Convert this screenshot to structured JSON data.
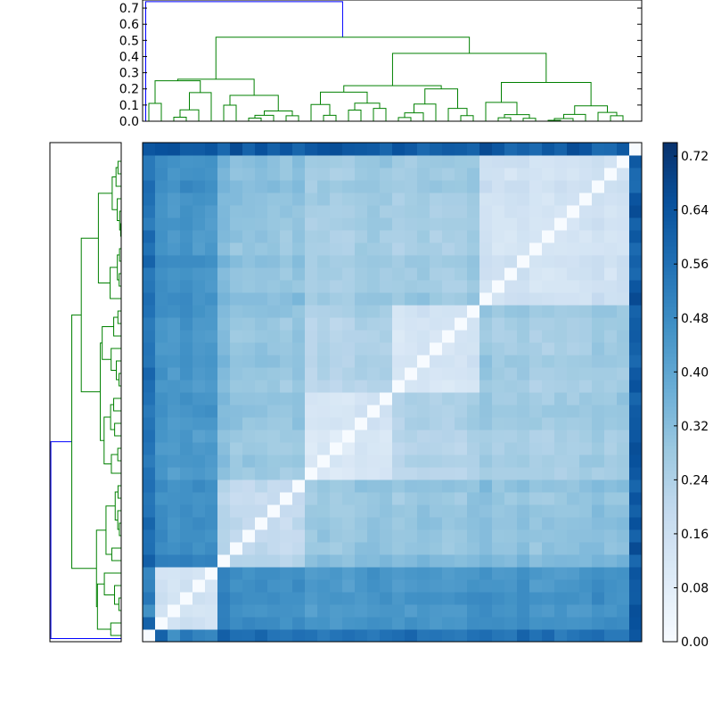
{
  "chart_data": {
    "type": "heatmap",
    "title": "",
    "n": 40,
    "color_range": [
      0.0,
      0.74
    ],
    "colormap": "Blues",
    "colors": {
      "dendro_inner": "#008000",
      "dendro_outer": "#0000ff",
      "frame": "#000000"
    },
    "top_dendrogram": {
      "y_range": [
        0.0,
        0.75
      ],
      "y_ticks": [
        "0.0",
        "0.1",
        "0.2",
        "0.3",
        "0.4",
        "0.5",
        "0.6",
        "0.7"
      ],
      "y_tick_values": [
        0.0,
        0.1,
        0.2,
        0.3,
        0.4,
        0.5,
        0.6,
        0.7
      ]
    },
    "colorbar": {
      "ticks": [
        "0.00",
        "0.08",
        "0.16",
        "0.24",
        "0.32",
        "0.40",
        "0.48",
        "0.56",
        "0.64",
        "0.72"
      ],
      "tick_values": [
        0.0,
        0.08,
        0.16,
        0.24,
        0.32,
        0.4,
        0.48,
        0.56,
        0.64,
        0.72
      ]
    },
    "cluster_groups": [
      {
        "start": 0,
        "size": 6,
        "within": 0.12,
        "row_to_others": 0.5
      },
      {
        "start": 6,
        "size": 7,
        "within": 0.17,
        "row_to_others": 0.3
      },
      {
        "start": 13,
        "size": 7,
        "within": 0.12,
        "row_to_others": 0.22
      },
      {
        "start": 20,
        "size": 7,
        "within": 0.13,
        "row_to_others": 0.24
      },
      {
        "start": 27,
        "size": 12,
        "within": 0.14,
        "row_to_others": 0.28
      },
      {
        "start": 39,
        "size": 1,
        "within": 0.0,
        "row_to_others": 0.64
      }
    ]
  }
}
